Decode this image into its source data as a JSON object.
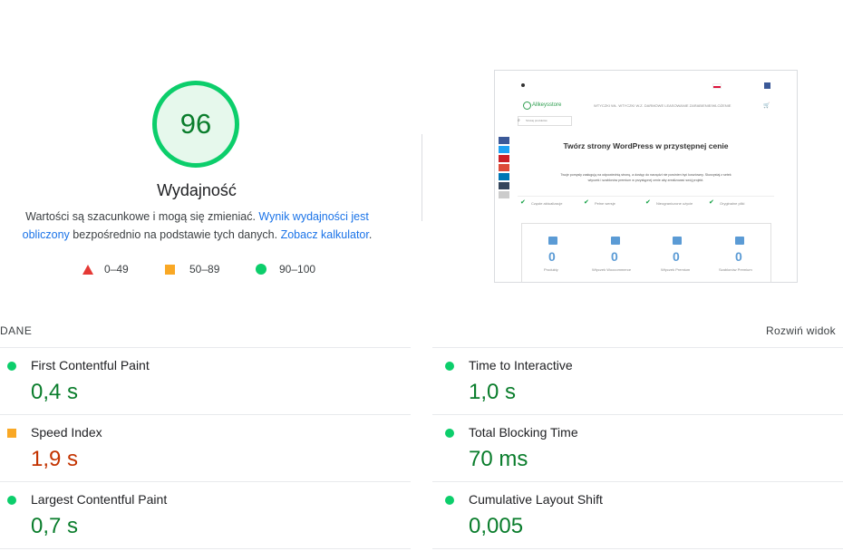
{
  "score": {
    "value": "96",
    "title": "Wydajność",
    "disclaimer_1": "Wartości są szacunkowe i mogą się zmieniać. ",
    "disclaimer_link_1": "Wynik wydajności jest obliczony",
    "disclaimer_2": " bezpośrednio na podstawie tych danych. ",
    "disclaimer_link_2": "Zobacz kalkulator",
    "disclaimer_3": "."
  },
  "legend": {
    "fail": "0–49",
    "average": "50–89",
    "pass": "90–100"
  },
  "thumbnail": {
    "brand": "Allkeysstore",
    "nav": "WTYCZKI WŁ.   WTYCZKI W.Z. DARMOWE   LEASOWANIE  ZARABIENIE/WLOŻENIE",
    "search_placeholder": "Szukaj produktów",
    "headline": "Twórz strony WordPress w przystępnej cenie",
    "subtext_1": "Twoje pomysły zasługują na odpowiednią stronę, a dostęp do narzędzi nie powinien być kosztowny. Skorzystaj z setek",
    "subtext_2": "wtyczek i szablonów premium w przystępnej cenie aby zrealizować swój projekt.",
    "checks": [
      "Częste aktualizacje",
      "Pełne wersje",
      "Nieograniczone użycie",
      "Oryginalne pliki"
    ],
    "stats": [
      {
        "value": "0",
        "label": "Produkty"
      },
      {
        "value": "0",
        "label": "Wtyczek Woocommerce"
      },
      {
        "value": "0",
        "label": "Wtyczek Premium"
      },
      {
        "value": "0",
        "label": "Szablonów Premium"
      }
    ]
  },
  "metrics": {
    "section_title": "DANE",
    "expand_label": "Rozwiń widok",
    "left": [
      {
        "label": "First Contentful Paint",
        "value": "0,4 s",
        "status": "pass"
      },
      {
        "label": "Speed Index",
        "value": "1,9 s",
        "status": "average"
      },
      {
        "label": "Largest Contentful Paint",
        "value": "0,7 s",
        "status": "pass"
      }
    ],
    "right": [
      {
        "label": "Time to Interactive",
        "value": "1,0 s",
        "status": "pass"
      },
      {
        "label": "Total Blocking Time",
        "value": "70 ms",
        "status": "pass"
      },
      {
        "label": "Cumulative Layout Shift",
        "value": "0,005",
        "status": "pass"
      }
    ]
  },
  "colors": {
    "pass": "#0cce6b",
    "average": "#f9a825",
    "fail": "#e53935",
    "pass_text": "#0a7d2c",
    "average_text": "#c33300",
    "link": "#1a73e8"
  }
}
